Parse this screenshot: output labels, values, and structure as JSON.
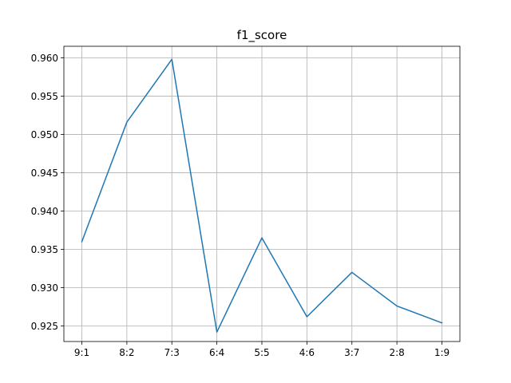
{
  "chart_data": {
    "type": "line",
    "title": "f1_score",
    "xlabel": "",
    "ylabel": "",
    "categories": [
      "9:1",
      "8:2",
      "7:3",
      "6:4",
      "5:5",
      "4:6",
      "3:7",
      "2:8",
      "1:9"
    ],
    "series": [
      {
        "values": [
          0.936,
          0.9516,
          0.9598,
          0.9242,
          0.9365,
          0.9262,
          0.932,
          0.9276,
          0.9254
        ],
        "color": "#1f77b4"
      }
    ],
    "yticks": [
      "0.925",
      "0.930",
      "0.935",
      "0.940",
      "0.945",
      "0.950",
      "0.955",
      "0.960"
    ],
    "ylim": [
      0.92297,
      0.9615
    ],
    "grid": true,
    "legend": "none"
  }
}
